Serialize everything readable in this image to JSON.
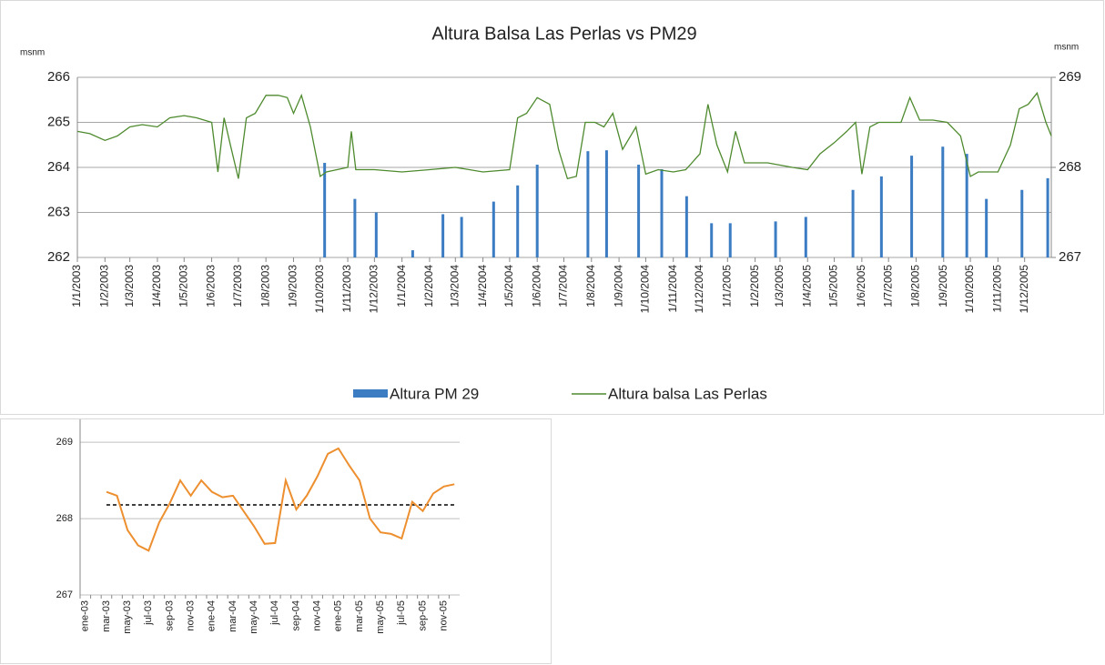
{
  "chart_data": [
    {
      "type": "combo",
      "title": "Altura Balsa Las Perlas vs PM29",
      "y_label": "msnm",
      "y2_label": "msnm",
      "xlim": [
        "1/1/2003",
        "31/12/2005"
      ],
      "xticks": [
        "1/1/2003",
        "1/2/2003",
        "1/3/2003",
        "1/4/2003",
        "1/5/2003",
        "1/6/2003",
        "1/7/2003",
        "1/8/2003",
        "1/9/2003",
        "1/10/2003",
        "1/11/2003",
        "1/12/2003",
        "1/1/2004",
        "1/2/2004",
        "1/3/2004",
        "1/4/2004",
        "1/5/2004",
        "1/6/2004",
        "1/7/2004",
        "1/8/2004",
        "1/9/2004",
        "1/10/2004",
        "1/11/2004",
        "1/12/2004",
        "1/1/2005",
        "1/2/2005",
        "1/3/2005",
        "1/4/2005",
        "1/5/2005",
        "1/6/2005",
        "1/7/2005",
        "1/8/2005",
        "1/9/2005",
        "1/10/2005",
        "1/11/2005",
        "1/12/2005"
      ],
      "ylim": [
        262,
        266
      ],
      "yticks": [
        262,
        263,
        264,
        265,
        266
      ],
      "y2lim": [
        267,
        269
      ],
      "y2ticks": [
        267,
        268,
        269
      ],
      "grid": true,
      "legend": "bottom",
      "series": [
        {
          "name": "Altura PM 29",
          "type": "bar",
          "axis": "y2",
          "color": "#3b7cc3",
          "x": [
            "6/10/2003",
            "9/11/2003",
            "3/12/2003",
            "13/1/2004",
            "16/2/2004",
            "8/3/2004",
            "13/4/2004",
            "10/5/2004",
            "1/6/2004",
            "28/7/2004",
            "18/8/2004",
            "23/9/2004",
            "19/10/2004",
            "16/11/2004",
            "14/12/2004",
            "4/1/2005",
            "24/2/2005",
            "30/3/2005",
            "22/5/2005",
            "23/6/2005",
            "27/7/2005",
            "31/8/2005",
            "27/9/2005",
            "19/10/2005",
            "28/11/2005",
            "27/12/2005"
          ],
          "values": [
            268.05,
            267.65,
            267.5,
            267.08,
            267.48,
            267.45,
            267.62,
            267.8,
            268.03,
            268.18,
            268.19,
            268.03,
            267.98,
            267.68,
            267.38,
            267.38,
            267.4,
            267.45,
            267.75,
            267.9,
            268.13,
            268.23,
            268.15,
            267.65,
            267.75,
            267.88
          ]
        },
        {
          "name": "Altura balsa Las Perlas",
          "type": "line",
          "color": "#4e8a2e",
          "x": [
            "1/1/2003",
            "15/1/2003",
            "1/2/2003",
            "15/2/2003",
            "1/3/2003",
            "15/3/2003",
            "1/4/2003",
            "15/4/2003",
            "1/5/2003",
            "15/5/2003",
            "1/6/2003",
            "8/6/2003",
            "15/6/2003",
            "22/6/2003",
            "1/7/2003",
            "10/7/2003",
            "20/7/2003",
            "1/8/2003",
            "15/8/2003",
            "25/8/2003",
            "1/9/2003",
            "10/9/2003",
            "20/9/2003",
            "1/10/2003",
            "8/10/2003",
            "20/10/2003",
            "1/11/2003",
            "5/11/2003",
            "10/11/2003",
            "1/12/2003",
            "1/1/2004",
            "1/2/2004",
            "1/3/2004",
            "1/4/2004",
            "1/5/2004",
            "10/5/2004",
            "20/5/2004",
            "1/6/2004",
            "15/6/2004",
            "25/6/2004",
            "5/7/2004",
            "15/7/2004",
            "25/7/2004",
            "5/8/2004",
            "15/8/2004",
            "25/8/2004",
            "5/9/2004",
            "20/9/2004",
            "1/10/2004",
            "15/10/2004",
            "1/11/2004",
            "15/11/2004",
            "1/12/2004",
            "10/12/2004",
            "20/12/2004",
            "1/1/2005",
            "10/1/2005",
            "20/1/2005",
            "1/2/2005",
            "15/2/2005",
            "1/3/2005",
            "15/3/2005",
            "1/4/2005",
            "15/4/2005",
            "1/5/2005",
            "15/5/2005",
            "25/5/2005",
            "1/6/2005",
            "10/6/2005",
            "20/6/2005",
            "1/7/2005",
            "15/7/2005",
            "25/7/2005",
            "5/8/2005",
            "20/8/2005",
            "5/9/2005",
            "20/9/2005",
            "1/10/2005",
            "10/10/2005",
            "1/11/2005",
            "15/11/2005",
            "25/11/2005",
            "5/12/2005",
            "15/12/2005",
            "25/12/2005",
            "31/12/2005"
          ],
          "values": [
            264.8,
            264.75,
            264.6,
            264.7,
            264.9,
            264.95,
            264.9,
            265.1,
            265.15,
            265.1,
            265.0,
            263.9,
            265.1,
            264.5,
            263.75,
            265.1,
            265.2,
            265.6,
            265.6,
            265.55,
            265.2,
            265.6,
            264.9,
            263.8,
            263.9,
            263.95,
            264.0,
            264.8,
            263.95,
            263.95,
            263.9,
            263.95,
            264.0,
            263.9,
            263.95,
            265.1,
            265.2,
            265.55,
            265.4,
            264.4,
            263.75,
            263.8,
            265.0,
            265.0,
            264.9,
            265.2,
            264.4,
            264.9,
            263.85,
            263.95,
            263.9,
            263.95,
            264.3,
            265.4,
            264.5,
            263.9,
            264.8,
            264.1,
            264.1,
            264.1,
            264.05,
            264.0,
            263.95,
            264.3,
            264.55,
            264.8,
            265.0,
            263.85,
            264.9,
            265.0,
            265.0,
            265.0,
            265.55,
            265.05,
            265.05,
            265.0,
            264.7,
            263.8,
            263.9,
            263.9,
            264.5,
            265.3,
            265.4,
            265.65,
            265.0,
            264.7
          ]
        }
      ]
    },
    {
      "type": "line",
      "color": "#ed8f2f",
      "categories": [
        "ene-03",
        null,
        "mar-03",
        null,
        "may-03",
        null,
        "jul-03",
        null,
        "sep-03",
        null,
        "nov-03",
        null,
        "ene-04",
        null,
        "mar-04",
        null,
        "may-04",
        null,
        "jul-04",
        null,
        "sep-04",
        null,
        "nov-04",
        null,
        "ene-05",
        null,
        "mar-05",
        null,
        "may-05",
        null,
        "jul-05",
        null,
        "sep-05",
        null,
        "nov-05",
        null
      ],
      "values": [
        null,
        null,
        268.35,
        268.3,
        267.85,
        267.65,
        267.58,
        267.95,
        268.2,
        268.5,
        268.3,
        268.5,
        268.35,
        268.28,
        268.3,
        268.1,
        267.9,
        267.67,
        267.68,
        268.5,
        268.12,
        268.3,
        268.55,
        268.85,
        268.92,
        268.7,
        268.5,
        268.0,
        267.82,
        267.8,
        267.74,
        268.22,
        268.1,
        268.33,
        268.42,
        268.45
      ],
      "mean_line": 268.18,
      "mean_line_color": "#000000",
      "ylim": [
        267,
        269.3
      ],
      "yticks": [
        267,
        268,
        269
      ],
      "grid": true
    }
  ]
}
